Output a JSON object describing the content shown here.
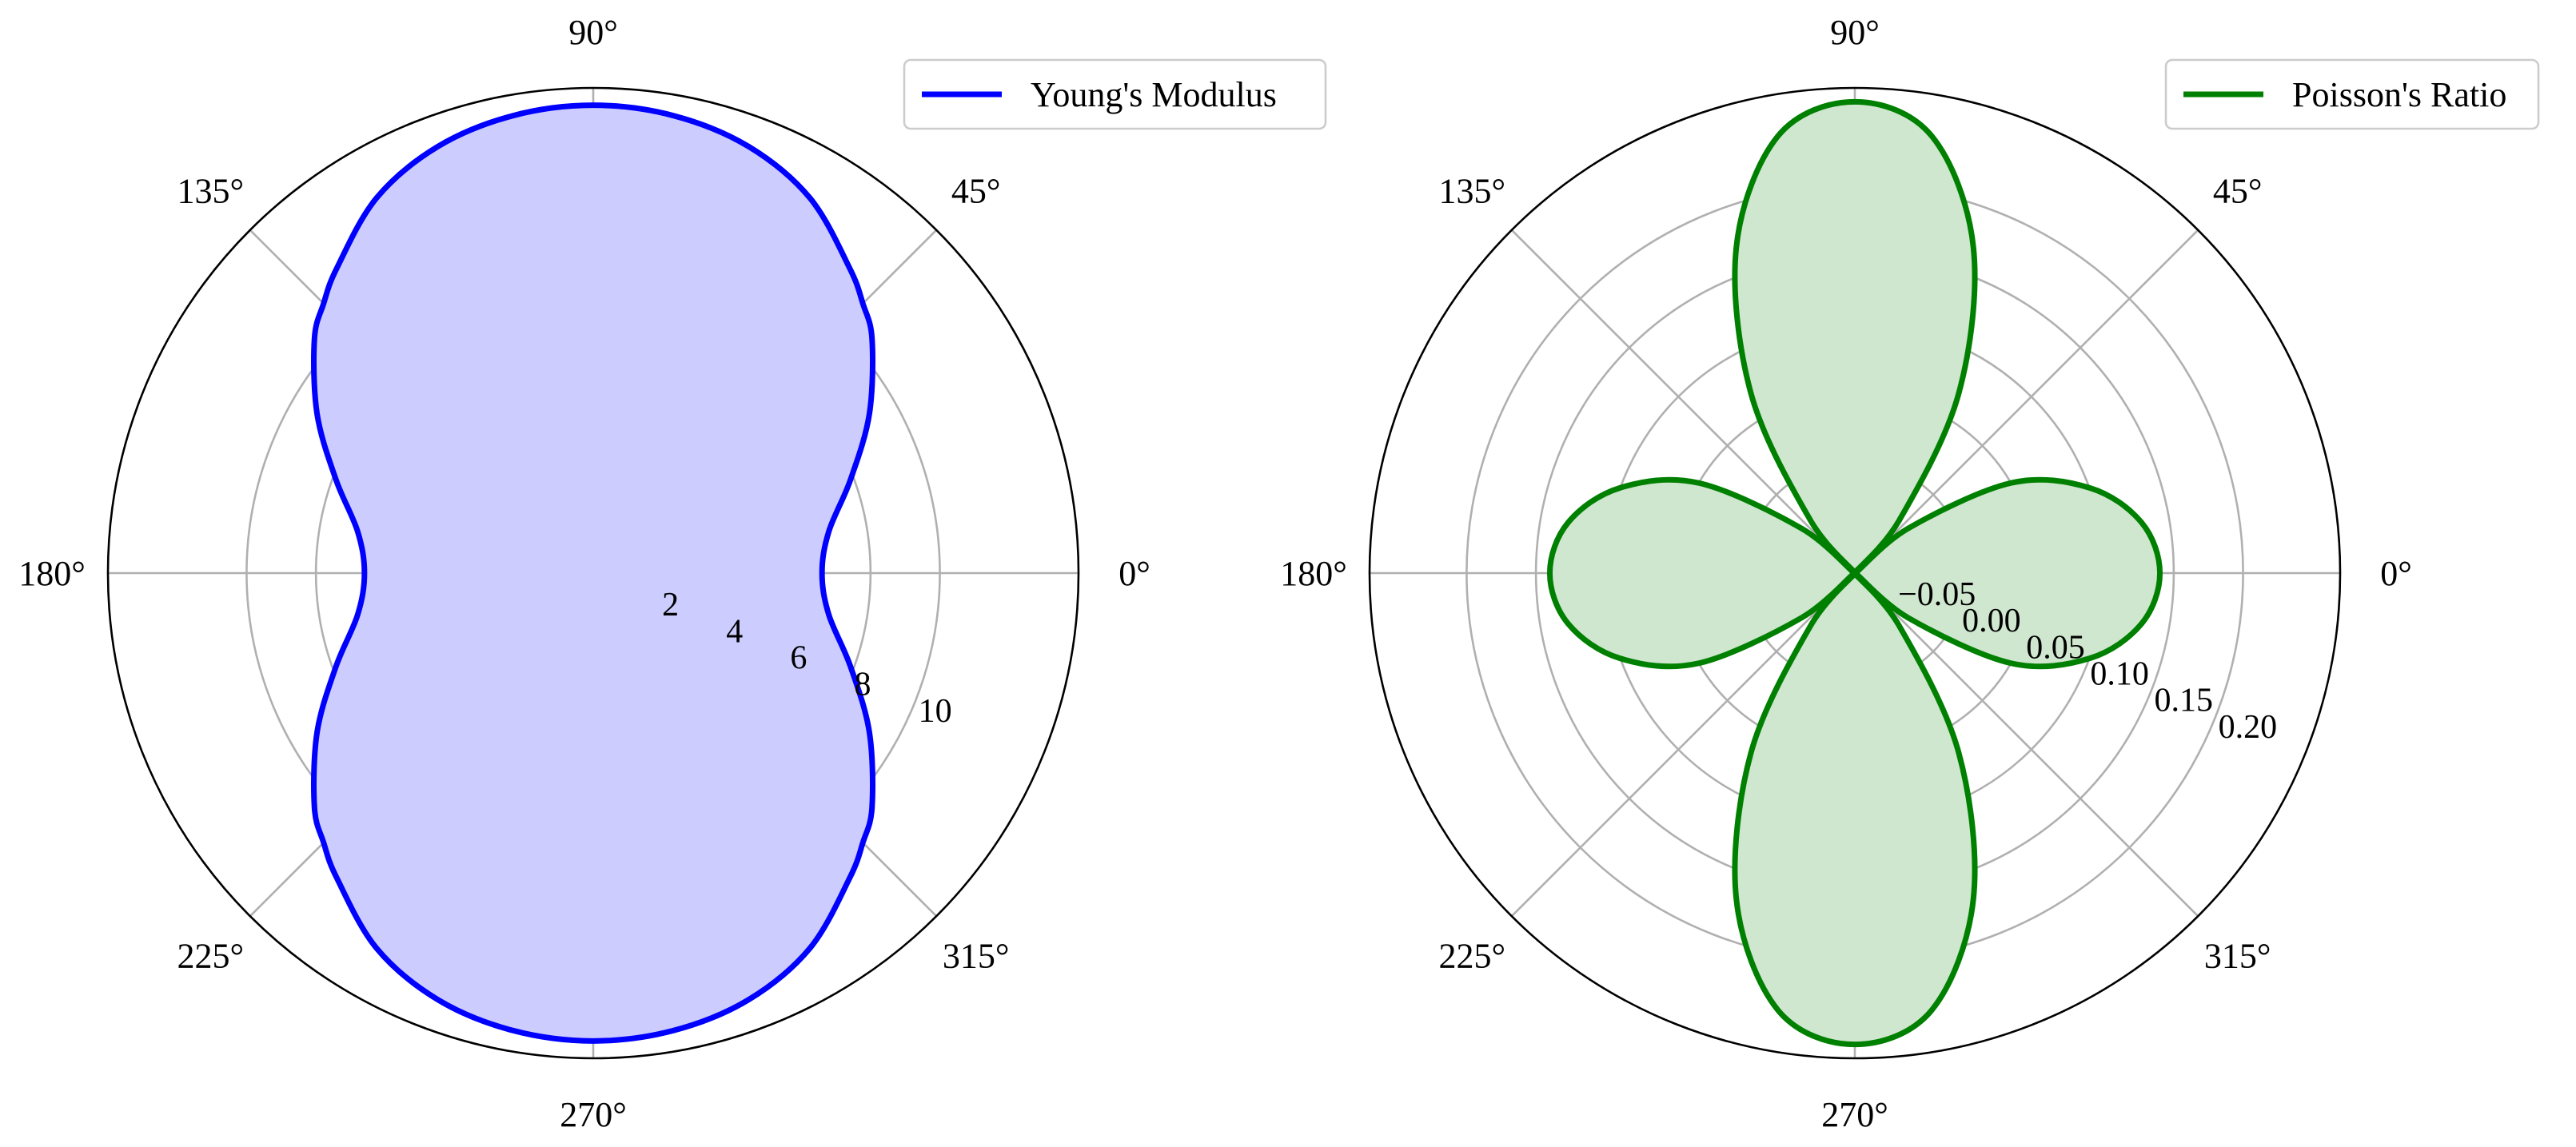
{
  "chart_data": [
    {
      "type": "polar",
      "legend": {
        "label": "Young's Modulus",
        "placement": "top-right"
      },
      "series": [
        {
          "name": "Young's Modulus",
          "color": "#0000ff",
          "fill": "#ccccff",
          "theta_deg": [
            0,
            10,
            20,
            30,
            40,
            45,
            50,
            60,
            70,
            80,
            90
          ],
          "r": [
            6.6,
            6.9,
            7.9,
            9.2,
            10.5,
            11.0,
            11.5,
            12.5,
            13.1,
            13.4,
            13.5
          ],
          "symmetry": "mirror about 0° and 90°"
        }
      ],
      "r_ticks": [
        "2",
        "4",
        "6",
        "8",
        "10"
      ],
      "rlim": [
        0,
        14
      ],
      "angle_ticks": [
        "0°",
        "45°",
        "90°",
        "135°",
        "180°",
        "225°",
        "270°",
        "315°"
      ],
      "grid": true
    },
    {
      "type": "polar",
      "legend": {
        "label": "Poisson's Ratio",
        "placement": "top-right"
      },
      "series": [
        {
          "name": "Poisson's Ratio",
          "color": "#008000",
          "fill": "#cfe6cf",
          "theta_deg": [
            0,
            10,
            20,
            30,
            40,
            45,
            50,
            60,
            70,
            80,
            90
          ],
          "r": [
            0.14,
            0.13,
            0.1,
            0.05,
            -0.03,
            -0.08,
            -0.03,
            0.07,
            0.17,
            0.24,
            0.26
          ],
          "symmetry": "mirror about 0° and 90°"
        }
      ],
      "r_ticks": [
        "−0.05",
        "0.00",
        "0.05",
        "0.10",
        "0.15",
        "0.20"
      ],
      "rlim": [
        -0.08,
        0.27
      ],
      "angle_ticks": [
        "0°",
        "45°",
        "90°",
        "135°",
        "180°",
        "225°",
        "270°",
        "315°"
      ],
      "grid": true
    }
  ]
}
